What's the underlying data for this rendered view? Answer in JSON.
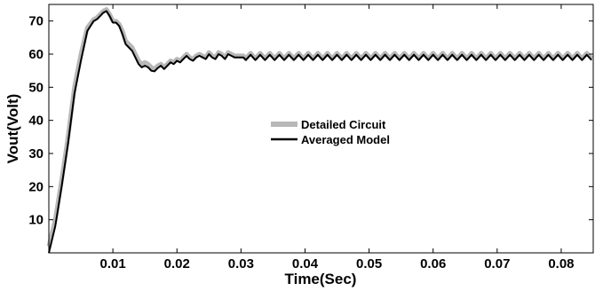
{
  "chart_data": {
    "type": "line",
    "title": "",
    "xlabel": "Time(Sec)",
    "ylabel": "Vout(Volt)",
    "xlim": [
      0,
      0.085
    ],
    "ylim": [
      0,
      75
    ],
    "xticks": [
      0.01,
      0.02,
      0.03,
      0.04,
      0.05,
      0.06,
      0.07,
      0.08
    ],
    "xtick_labels": [
      "0.01",
      "0.02",
      "0.03",
      "0.04",
      "0.05",
      "0.06",
      "0.07",
      "0.08"
    ],
    "yticks": [
      10,
      20,
      30,
      40,
      50,
      60,
      70
    ],
    "ytick_labels": [
      "10",
      "20",
      "30",
      "40",
      "50",
      "60",
      "70"
    ],
    "grid": false,
    "legend": "center",
    "colors": {
      "detailed": "#b8b8b8",
      "averaged": "#000000"
    },
    "series": [
      {
        "name": "Detailed Circuit",
        "x": [
          0,
          0.001,
          0.002,
          0.003,
          0.004,
          0.005,
          0.006,
          0.007,
          0.0075,
          0.008,
          0.0085,
          0.009,
          0.0095,
          0.01,
          0.0105,
          0.011,
          0.0115,
          0.012,
          0.0125,
          0.013,
          0.0135,
          0.014,
          0.0145,
          0.015,
          0.0155,
          0.016,
          0.0165,
          0.017,
          0.0175,
          0.018,
          0.0185,
          0.019,
          0.0195,
          0.02,
          0.0205,
          0.021,
          0.0215,
          0.022,
          0.0225,
          0.023,
          0.0235,
          0.024,
          0.0245,
          0.025,
          0.0255,
          0.026,
          0.0265,
          0.027,
          0.0275,
          0.028,
          0.0285,
          0.029,
          0.03,
          0.04,
          0.05,
          0.06,
          0.07,
          0.08,
          0.085
        ],
        "y": [
          2,
          10,
          22,
          35,
          50,
          60,
          68,
          70.5,
          71,
          72,
          73,
          73.5,
          72,
          70,
          70,
          69,
          67,
          64,
          63,
          62,
          60,
          58,
          57,
          57.5,
          57,
          56,
          55.5,
          56.5,
          57,
          56,
          57,
          58,
          57.5,
          58.5,
          58,
          59,
          60,
          59,
          58.5,
          59.5,
          60,
          59.5,
          59,
          60.5,
          59.5,
          59,
          60.5,
          60,
          59,
          60.5,
          60,
          59.5,
          59.5,
          59.5,
          59.5,
          59.5,
          59.5,
          59.5,
          59.5
        ]
      },
      {
        "name": "Averaged Model",
        "x": [
          0,
          0.001,
          0.002,
          0.003,
          0.004,
          0.005,
          0.006,
          0.007,
          0.0075,
          0.008,
          0.0085,
          0.009,
          0.0095,
          0.01,
          0.0105,
          0.011,
          0.0115,
          0.012,
          0.0125,
          0.013,
          0.0135,
          0.014,
          0.0145,
          0.015,
          0.0155,
          0.016,
          0.0165,
          0.017,
          0.0175,
          0.018,
          0.0185,
          0.019,
          0.0195,
          0.02,
          0.0205,
          0.021,
          0.0215,
          0.022,
          0.0225,
          0.023,
          0.0235,
          0.024,
          0.0245,
          0.025,
          0.0255,
          0.026,
          0.0265,
          0.027,
          0.0275,
          0.028,
          0.0285,
          0.029,
          0.03,
          0.04,
          0.05,
          0.06,
          0.07,
          0.08,
          0.085
        ],
        "y": [
          0,
          8,
          20,
          33,
          48,
          58,
          67,
          70,
          70.5,
          71.5,
          72.5,
          73,
          71.5,
          69.5,
          69.5,
          68.5,
          66,
          63,
          62,
          61,
          59,
          57,
          56,
          56.5,
          56,
          55,
          54.8,
          55.8,
          56.5,
          55.5,
          56.5,
          57.5,
          57,
          58,
          57.5,
          58.5,
          59.5,
          58.5,
          58,
          59,
          59.5,
          59,
          58.5,
          60,
          59,
          58.5,
          60,
          59.5,
          58.5,
          60,
          59.5,
          59,
          59,
          59,
          59,
          59,
          59,
          59,
          59
        ]
      }
    ]
  }
}
